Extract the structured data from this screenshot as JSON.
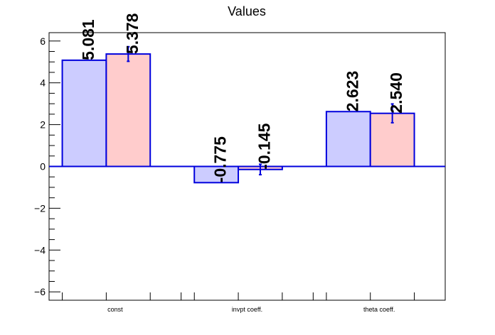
{
  "chart_data": {
    "type": "bar",
    "title": "Values",
    "xlabel": "",
    "ylabel": "",
    "categories": [
      "const",
      "invpt coeff.",
      "theta coeff."
    ],
    "series": [
      {
        "values": [
          5.081,
          -0.775,
          2.623
        ],
        "errors": [
          0,
          0,
          0
        ],
        "color": "#ccccff",
        "labels": [
          "5.081",
          "-0.775",
          "2.623"
        ]
      },
      {
        "values": [
          5.378,
          -0.145,
          2.54
        ],
        "errors": [
          0.35,
          0.25,
          0.45
        ],
        "color": "#ffcccc",
        "labels": [
          "5.378",
          "-0.145",
          "2.540"
        ]
      }
    ],
    "ylim": [
      -6.4,
      6.4
    ],
    "yticks": [
      -6,
      -4,
      -2,
      0,
      2,
      4,
      6
    ],
    "ytick_labels": [
      "−6",
      "−4",
      "−2",
      "0",
      "2",
      "4",
      "6"
    ],
    "grid": false,
    "edge_color": "#0000dd"
  }
}
